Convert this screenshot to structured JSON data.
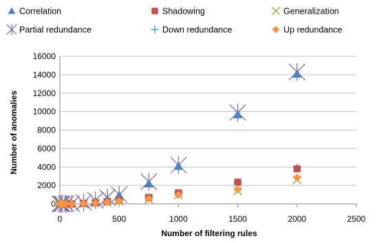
{
  "chart_data": {
    "type": "scatter",
    "title": "",
    "xlabel": "Number of filtering rules",
    "ylabel": "Number of anomalies",
    "xlim": [
      0,
      2500
    ],
    "ylim": [
      0,
      16000
    ],
    "xticks": [
      "0",
      "500",
      "1000",
      "1500",
      "2000",
      "2500"
    ],
    "yticks": [
      "0",
      "2000",
      "4000",
      "6000",
      "8000",
      "10000",
      "12000",
      "14000",
      "16000"
    ],
    "grid": "horizontal",
    "legend_position": "top",
    "series": [
      {
        "name": "Correlation",
        "color": "#4F81BD",
        "marker": "triangle",
        "points": [
          [
            0,
            0
          ],
          [
            10,
            0
          ],
          [
            20,
            0
          ],
          [
            50,
            10
          ],
          [
            100,
            20
          ],
          [
            200,
            80
          ],
          [
            300,
            250
          ],
          [
            400,
            500
          ],
          [
            500,
            900
          ],
          [
            750,
            2200
          ],
          [
            1000,
            4100
          ],
          [
            1500,
            9700
          ],
          [
            2000,
            14100
          ]
        ]
      },
      {
        "name": "Shadowing",
        "color": "#C0504D",
        "marker": "square",
        "points": [
          [
            0,
            0
          ],
          [
            10,
            0
          ],
          [
            20,
            0
          ],
          [
            50,
            5
          ],
          [
            100,
            10
          ],
          [
            200,
            40
          ],
          [
            300,
            120
          ],
          [
            400,
            240
          ],
          [
            500,
            400
          ],
          [
            750,
            700
          ],
          [
            1000,
            1200
          ],
          [
            1500,
            2350
          ],
          [
            2000,
            3800
          ]
        ]
      },
      {
        "name": "Generalization",
        "color": "#9BBB59",
        "marker": "x",
        "points": [
          [
            0,
            0
          ],
          [
            10,
            0
          ],
          [
            20,
            0
          ],
          [
            50,
            5
          ],
          [
            100,
            10
          ],
          [
            200,
            30
          ],
          [
            300,
            80
          ],
          [
            400,
            160
          ],
          [
            500,
            280
          ],
          [
            750,
            500
          ],
          [
            1000,
            950
          ],
          [
            1500,
            1400
          ],
          [
            2000,
            2600
          ]
        ]
      },
      {
        "name": "Partial redundance",
        "color": "#8064A2",
        "marker": "star",
        "points": [
          [
            0,
            0
          ],
          [
            10,
            0
          ],
          [
            20,
            0
          ],
          [
            50,
            10
          ],
          [
            100,
            30
          ],
          [
            200,
            150
          ],
          [
            300,
            400
          ],
          [
            400,
            700
          ],
          [
            500,
            1000
          ],
          [
            750,
            2400
          ],
          [
            1000,
            4200
          ],
          [
            1500,
            9900
          ],
          [
            2000,
            14300
          ]
        ]
      },
      {
        "name": "Down redundance",
        "color": "#4BACC6",
        "marker": "plus",
        "points": [
          [
            0,
            0
          ],
          [
            10,
            0
          ],
          [
            20,
            0
          ],
          [
            50,
            5
          ],
          [
            100,
            10
          ],
          [
            200,
            40
          ],
          [
            300,
            110
          ],
          [
            400,
            230
          ],
          [
            500,
            380
          ],
          [
            750,
            680
          ],
          [
            1000,
            1150
          ],
          [
            1500,
            2300
          ],
          [
            2000,
            3900
          ]
        ]
      },
      {
        "name": "Up redundance",
        "color": "#F79646",
        "marker": "diamond",
        "points": [
          [
            0,
            0
          ],
          [
            10,
            0
          ],
          [
            20,
            0
          ],
          [
            50,
            5
          ],
          [
            100,
            10
          ],
          [
            200,
            30
          ],
          [
            300,
            90
          ],
          [
            400,
            180
          ],
          [
            500,
            300
          ],
          [
            750,
            560
          ],
          [
            1000,
            980
          ],
          [
            1500,
            1550
          ],
          [
            2000,
            2850
          ]
        ]
      }
    ]
  }
}
